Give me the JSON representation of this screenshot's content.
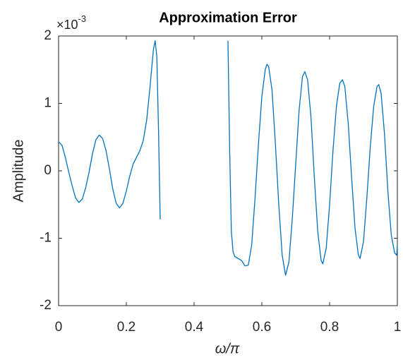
{
  "chart_data": {
    "type": "line",
    "title": "Approximation Error",
    "xlabel": "ω/π",
    "ylabel": "Amplitude",
    "y_multiplier": {
      "base": "×10",
      "exponent": "-3"
    },
    "xlim": [
      0,
      1
    ],
    "ylim": [
      -2,
      2
    ],
    "xticks": [
      0,
      0.2,
      0.4,
      0.6,
      0.8,
      1
    ],
    "yticks": [
      -2,
      -1,
      0,
      1,
      2
    ],
    "grid": false,
    "x": [
      0,
      0.01,
      0.02,
      0.03,
      0.04,
      0.05,
      0.06,
      0.07,
      0.08,
      0.09,
      0.1,
      0.11,
      0.12,
      0.13,
      0.14,
      0.15,
      0.16,
      0.17,
      0.18,
      0.19,
      0.2,
      0.21,
      0.22,
      0.23,
      0.24,
      0.25,
      0.26,
      0.27,
      0.28,
      0.285,
      0.29,
      0.295,
      0.3,
      0.4,
      0.5,
      0.505,
      0.51,
      0.515,
      0.52,
      0.53,
      0.54,
      0.55,
      0.56,
      0.57,
      0.58,
      0.59,
      0.6,
      0.61,
      0.615,
      0.62,
      0.63,
      0.64,
      0.65,
      0.66,
      0.67,
      0.68,
      0.69,
      0.7,
      0.71,
      0.72,
      0.727,
      0.735,
      0.745,
      0.755,
      0.765,
      0.775,
      0.78,
      0.79,
      0.8,
      0.81,
      0.82,
      0.83,
      0.838,
      0.845,
      0.855,
      0.865,
      0.875,
      0.885,
      0.89,
      0.9,
      0.91,
      0.92,
      0.93,
      0.94,
      0.945,
      0.952,
      0.962,
      0.972,
      0.982,
      0.992,
      0.998,
      1
    ],
    "series": [
      {
        "color": "#0072bd",
        "values": [
          0.43,
          0.38,
          0.2,
          -0.02,
          -0.22,
          -0.4,
          -0.47,
          -0.42,
          -0.25,
          -0.02,
          0.25,
          0.46,
          0.53,
          0.48,
          0.3,
          0.03,
          -0.27,
          -0.48,
          -0.55,
          -0.48,
          -0.3,
          -0.08,
          0.1,
          0.2,
          0.3,
          0.45,
          0.75,
          1.25,
          1.8,
          1.93,
          1.7,
          0.6,
          -0.72,
          null,
          1.93,
          0.3,
          -0.9,
          -1.2,
          -1.27,
          -1.3,
          -1.33,
          -1.41,
          -1.4,
          -1.1,
          -0.4,
          0.4,
          1.1,
          1.5,
          1.58,
          1.55,
          1.2,
          0.4,
          -0.5,
          -1.25,
          -1.55,
          -1.35,
          -0.7,
          0.1,
          0.9,
          1.4,
          1.47,
          1.35,
          0.8,
          -0.1,
          -0.9,
          -1.33,
          -1.38,
          -1.15,
          -0.5,
          0.3,
          0.95,
          1.3,
          1.35,
          1.25,
          0.7,
          -0.1,
          -0.85,
          -1.25,
          -1.3,
          -1.05,
          -0.4,
          0.35,
          0.95,
          1.25,
          1.28,
          1.15,
          0.55,
          -0.3,
          -0.95,
          -1.22,
          -1.25,
          -1.1
        ]
      }
    ]
  }
}
